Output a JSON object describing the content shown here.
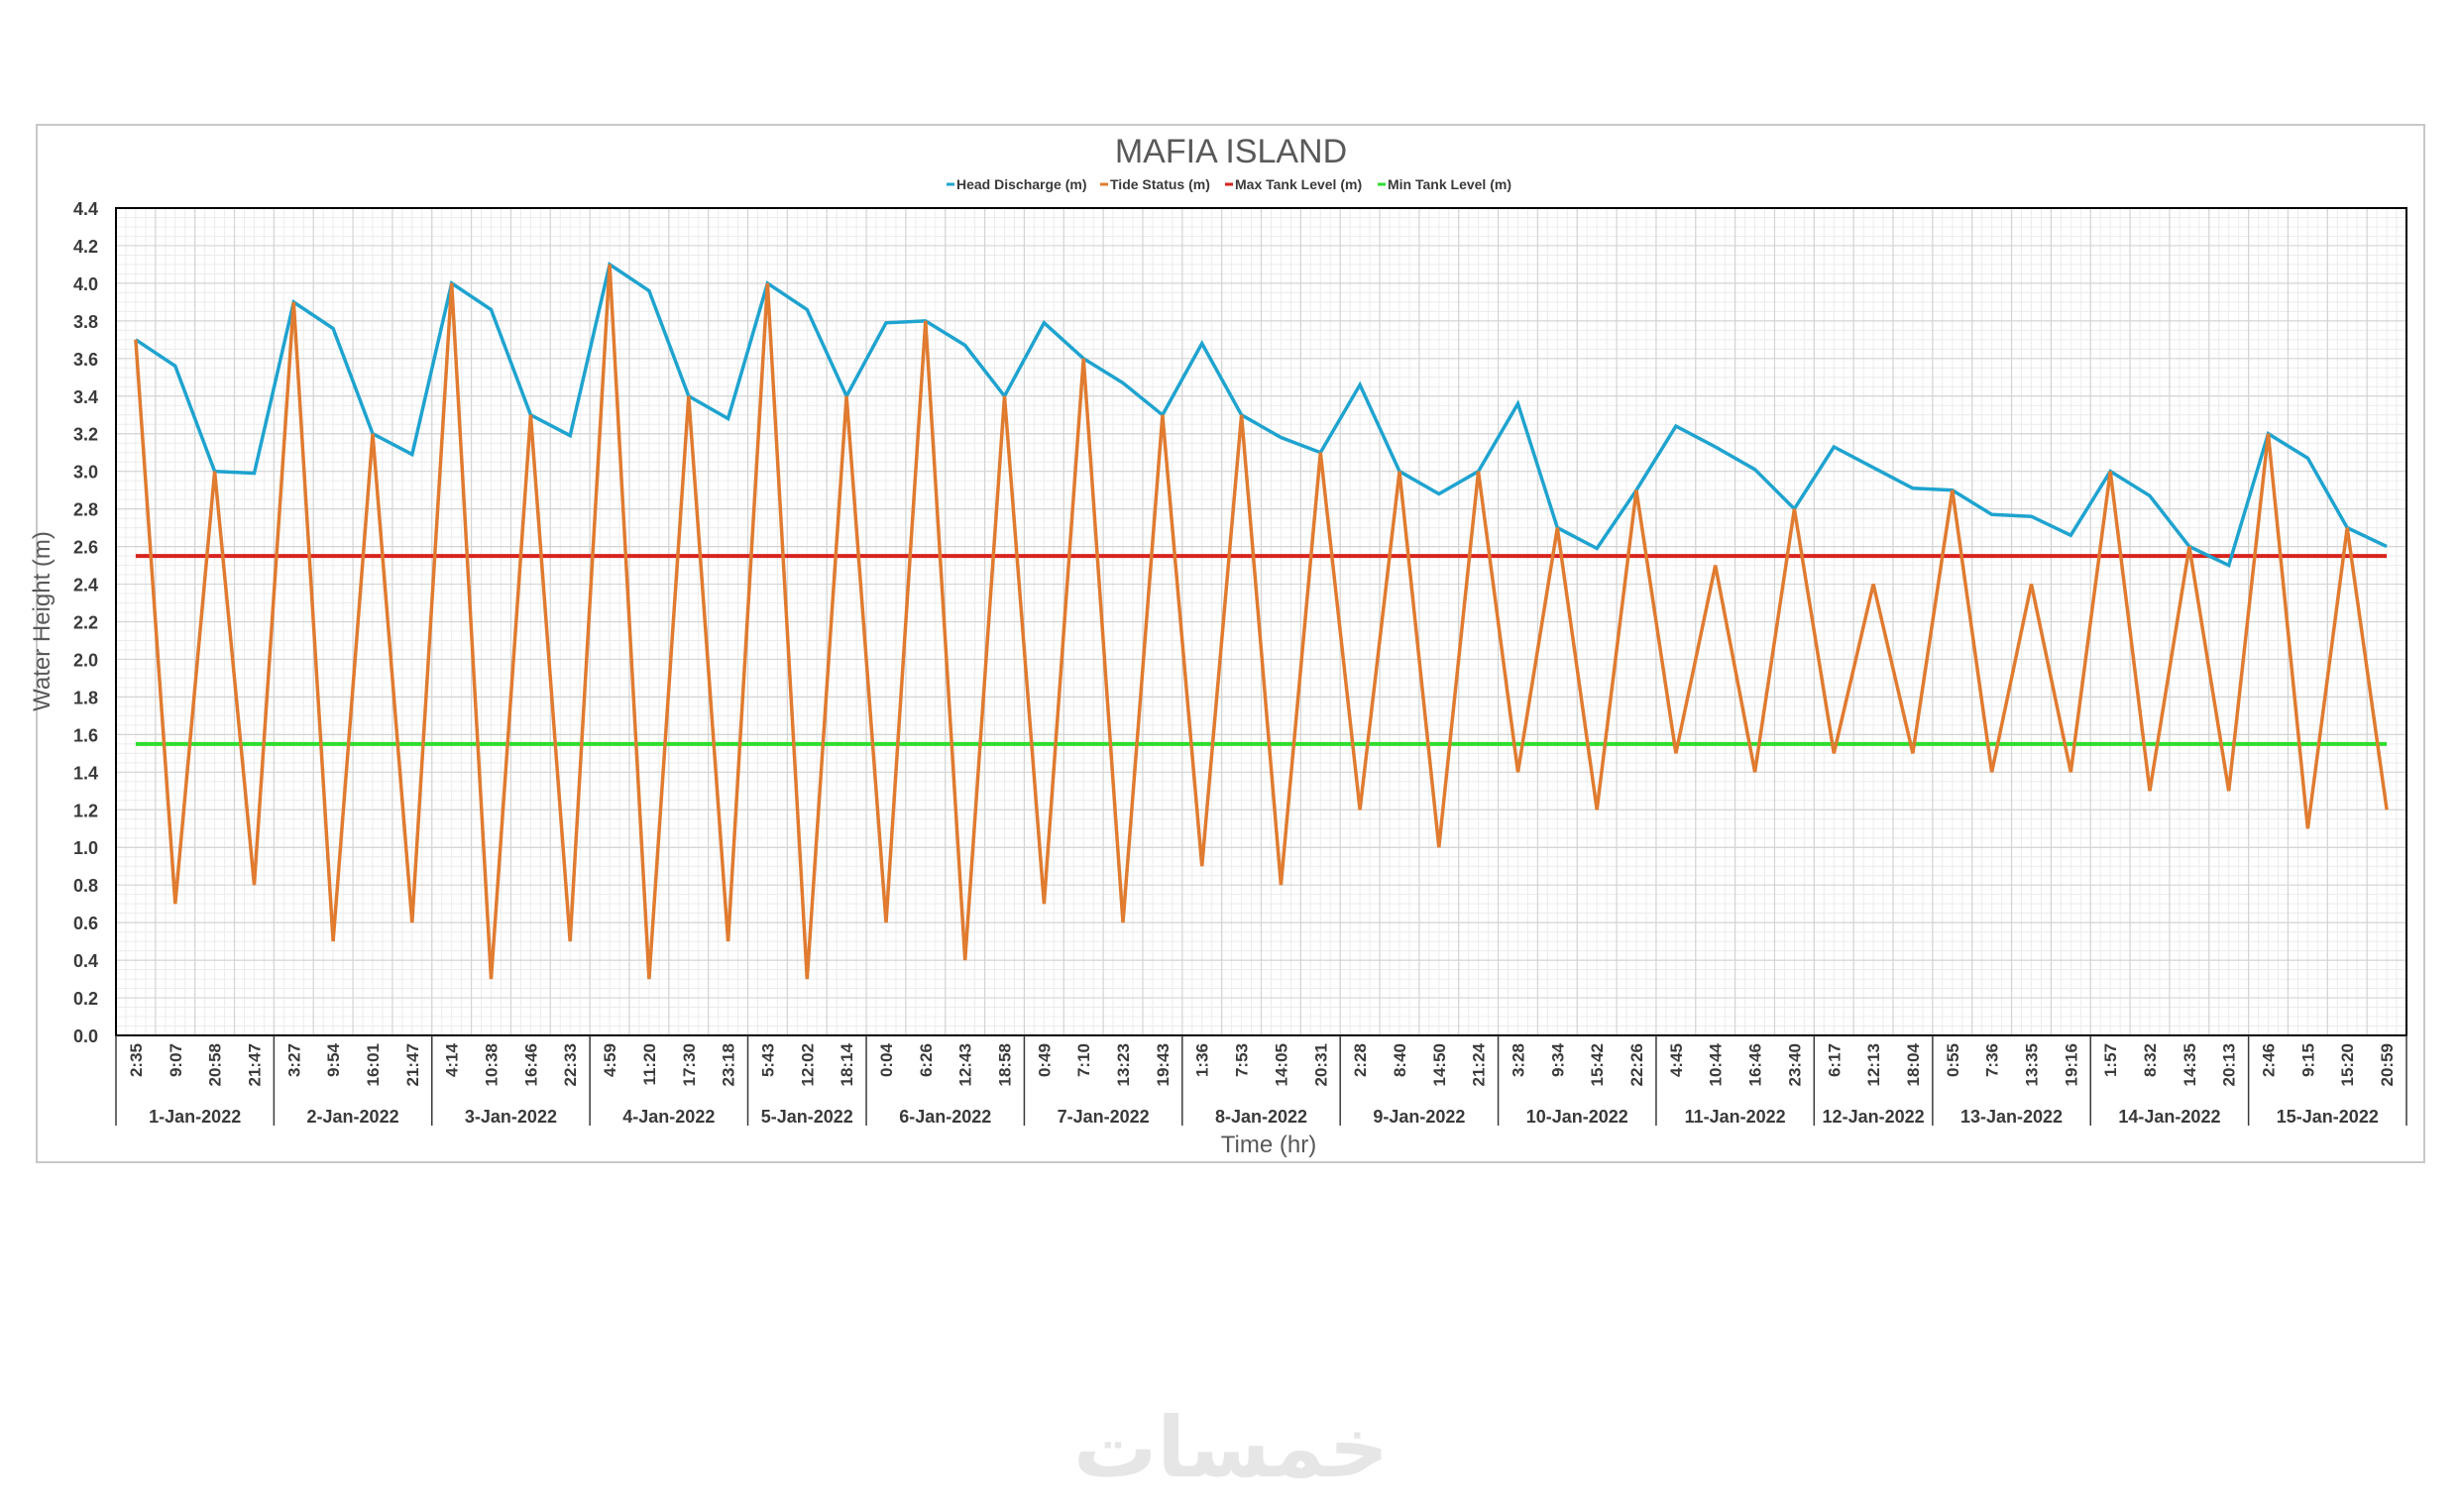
{
  "chart_data": {
    "type": "line",
    "title": "MAFIA ISLAND",
    "xlabel": "Time (hr)",
    "ylabel": "Water Height (m)",
    "ylim": [
      0,
      4.4
    ],
    "ytick_step": 0.2,
    "grid": "on",
    "legend_position": "top",
    "x_labels": [
      "2:35",
      "9:07",
      "20:58",
      "21:47",
      "3:27",
      "9:54",
      "16:01",
      "21:47",
      "4:14",
      "10:38",
      "16:46",
      "22:33",
      "4:59",
      "11:20",
      "17:30",
      "23:18",
      "5:43",
      "12:02",
      "18:14",
      "0:04",
      "6:26",
      "12:43",
      "18:58",
      "0:49",
      "7:10",
      "13:23",
      "19:43",
      "1:36",
      "7:53",
      "14:05",
      "20:31",
      "2:28",
      "8:40",
      "14:50",
      "21:24",
      "3:28",
      "9:34",
      "15:42",
      "22:26",
      "4:45",
      "10:44",
      "16:46",
      "23:40",
      "6:17",
      "12:13",
      "18:04",
      "0:55",
      "7:36",
      "13:35",
      "19:16",
      "1:57",
      "8:32",
      "14:35",
      "20:13",
      "2:46",
      "9:15",
      "15:20",
      "20:59"
    ],
    "date_groups": [
      {
        "label": "1-Jan-2022",
        "count": 4
      },
      {
        "label": "2-Jan-2022",
        "count": 4
      },
      {
        "label": "3-Jan-2022",
        "count": 4
      },
      {
        "label": "4-Jan-2022",
        "count": 4
      },
      {
        "label": "5-Jan-2022",
        "count": 3
      },
      {
        "label": "6-Jan-2022",
        "count": 4
      },
      {
        "label": "7-Jan-2022",
        "count": 4
      },
      {
        "label": "8-Jan-2022",
        "count": 4
      },
      {
        "label": "9-Jan-2022",
        "count": 4
      },
      {
        "label": "10-Jan-2022",
        "count": 4
      },
      {
        "label": "11-Jan-2022",
        "count": 4
      },
      {
        "label": "12-Jan-2022",
        "count": 3
      },
      {
        "label": "13-Jan-2022",
        "count": 4
      },
      {
        "label": "14-Jan-2022",
        "count": 4
      },
      {
        "label": "15-Jan-2022",
        "count": 4
      }
    ],
    "series": [
      {
        "name": "Head Discharge (m)",
        "color": "#1fa3cf",
        "values": [
          3.7,
          3.56,
          3.0,
          2.99,
          3.9,
          3.76,
          3.2,
          3.09,
          4.0,
          3.86,
          3.3,
          3.19,
          4.1,
          3.96,
          3.4,
          3.28,
          4.0,
          3.86,
          3.4,
          3.79,
          3.8,
          3.67,
          3.4,
          3.79,
          3.6,
          3.47,
          3.3,
          3.68,
          3.3,
          3.18,
          3.1,
          3.46,
          3.0,
          2.88,
          3.0,
          3.36,
          2.7,
          2.59,
          2.9,
          3.24,
          3.13,
          3.01,
          2.8,
          3.13,
          3.02,
          2.91,
          2.9,
          2.77,
          2.76,
          2.66,
          3.0,
          2.87,
          2.6,
          2.5,
          3.2,
          3.07,
          2.7,
          2.6
        ]
      },
      {
        "name": "Tide Status (m)",
        "color": "#e07b30",
        "values": [
          3.7,
          0.7,
          3.0,
          0.8,
          3.9,
          0.5,
          3.2,
          0.6,
          4.0,
          0.3,
          3.3,
          0.5,
          4.1,
          0.3,
          3.4,
          0.5,
          4.0,
          0.3,
          3.4,
          0.6,
          3.8,
          0.4,
          3.4,
          0.7,
          3.6,
          0.6,
          3.3,
          0.9,
          3.3,
          0.8,
          3.1,
          1.2,
          3.0,
          1.0,
          3.0,
          1.4,
          2.7,
          1.2,
          2.9,
          1.5,
          2.5,
          1.4,
          2.8,
          1.5,
          2.4,
          1.5,
          2.9,
          1.4,
          2.4,
          1.4,
          3.0,
          1.3,
          2.6,
          1.3,
          3.2,
          1.1,
          2.7,
          1.2
        ]
      },
      {
        "name": "Max Tank Level (m)",
        "color": "#d8231e",
        "constant": 2.55
      },
      {
        "name": "Min Tank Level (m)",
        "color": "#2fdc2f",
        "constant": 1.55
      }
    ]
  },
  "watermark": {
    "text": "خمسات",
    "color": "#e6e6e6"
  }
}
